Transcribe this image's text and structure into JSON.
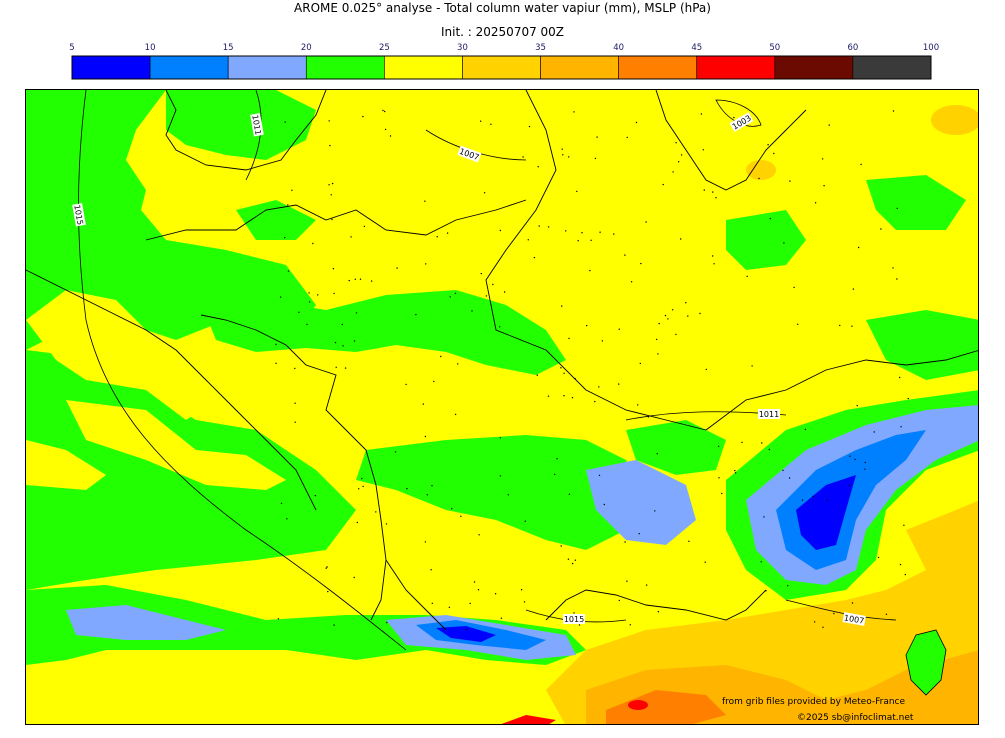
{
  "title": "AROME 0.025° analyse - Total column water vapiur (mm), MSLP (hPa)",
  "subtitle": "Init. : 20250707 00Z",
  "colorbar": {
    "ticks": [
      "5",
      "10",
      "15",
      "20",
      "25",
      "30",
      "35",
      "40",
      "45",
      "50",
      "60",
      "100"
    ],
    "colors": [
      "#0000ff",
      "#0080ff",
      "#80a8ff",
      "#22ff00",
      "#ffff00",
      "#ffd200",
      "#ffb400",
      "#ff8000",
      "#ff0000",
      "#6b0a00",
      "#3a3a3a"
    ]
  },
  "isobars": [
    "1011",
    "1015",
    "1007",
    "1003",
    "1011",
    "1015",
    "1007"
  ],
  "credits": {
    "source": "from grib files provided by Meteo-France",
    "copyright": "©2025 sb@infoclimat.net"
  },
  "colors": {
    "vapour_5_10": "#0000ff",
    "vapour_10_15": "#0080ff",
    "vapour_15_20": "#80a8ff",
    "vapour_20_25": "#22ff00",
    "vapour_25_30": "#ffff00",
    "vapour_30_35": "#ffd200",
    "vapour_35_40": "#ffb400",
    "vapour_40_45": "#ff8000",
    "vapour_45_50": "#ff0000"
  }
}
